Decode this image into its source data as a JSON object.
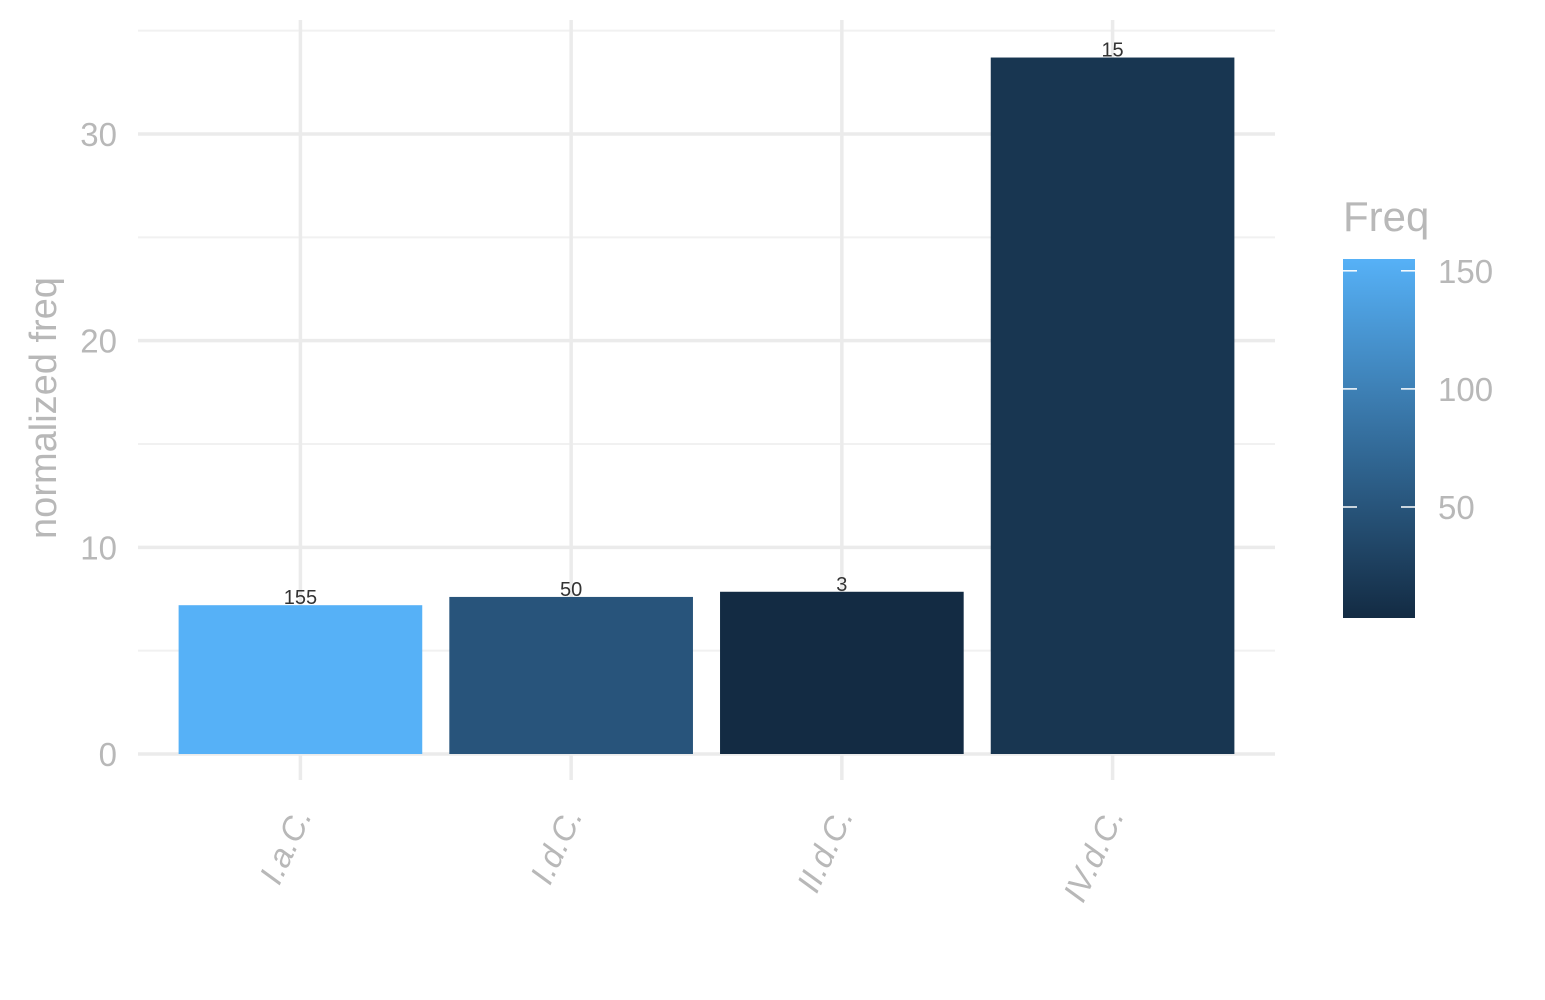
{
  "chart_data": {
    "type": "bar",
    "categories": [
      "I.a.C.",
      "I.d.C.",
      "II.d.C.",
      "IV.d.C."
    ],
    "values": [
      7.2,
      7.6,
      7.85,
      33.7
    ],
    "bar_labels": [
      "155",
      "50",
      "3",
      "15"
    ],
    "fill_values": [
      155,
      50,
      3,
      15
    ],
    "xlabel": "",
    "ylabel": "normalized freq",
    "ylim": [
      0,
      35
    ],
    "yticks": [
      0,
      10,
      20,
      30
    ],
    "grid": true,
    "legend": {
      "title": "Freq",
      "type": "colorbar",
      "placement": "right",
      "ticks": [
        50,
        100,
        150
      ],
      "range": [
        3,
        155
      ],
      "color_low": "#132B43",
      "color_high": "#56B1F7"
    }
  }
}
